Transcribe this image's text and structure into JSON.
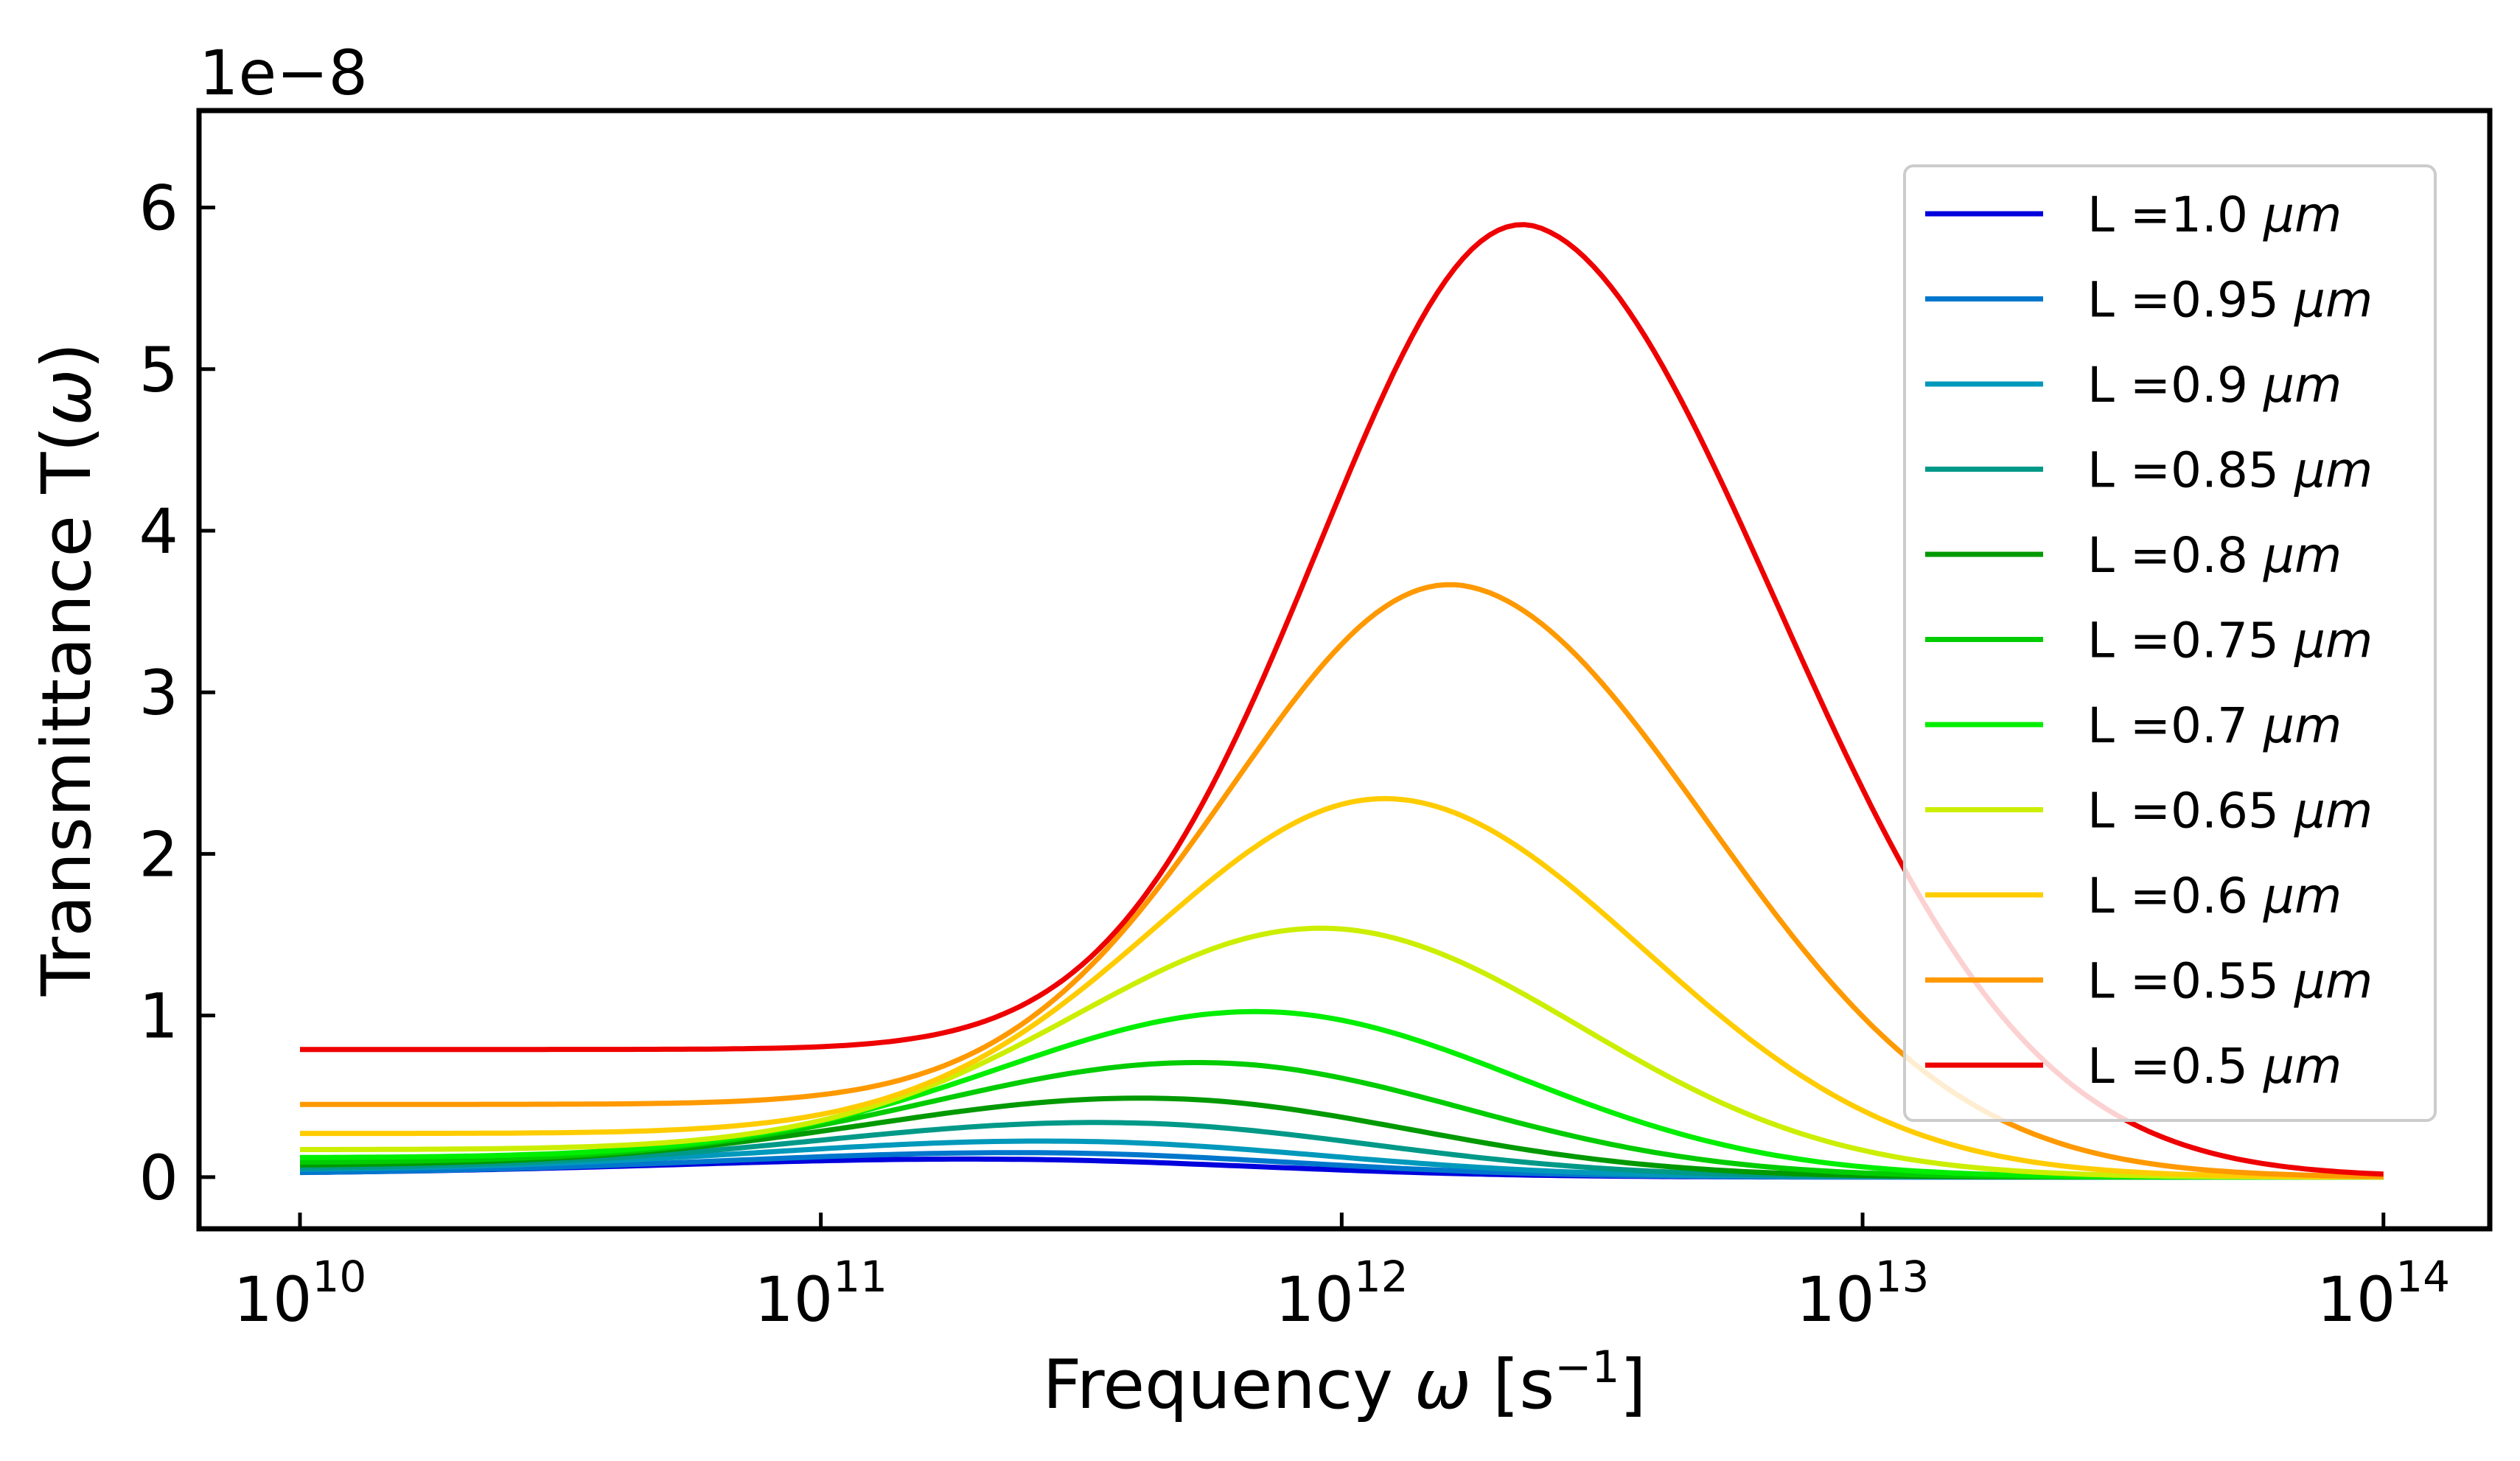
{
  "chart_data": {
    "type": "line",
    "title": "",
    "xlabel_pre": "Frequency ",
    "xlabel_sym": "ω",
    "xlabel_post1": " [s",
    "xlabel_sup": "−1",
    "xlabel_post2": "]",
    "ylabel_pre": "Transmittance T(",
    "ylabel_sym": "ω",
    "ylabel_post": ")",
    "y_offset_text": "1e−8",
    "x_scale": "log",
    "xlim": [
      6400000000.0,
      160000000000000.0
    ],
    "ylim": [
      -0.32,
      6.6
    ],
    "grid": false,
    "legend_position": "top-right",
    "x_ticks": [
      {
        "base": "10",
        "exp": "10",
        "value": 10000000000.0
      },
      {
        "base": "10",
        "exp": "11",
        "value": 100000000000.0
      },
      {
        "base": "10",
        "exp": "12",
        "value": 1000000000000.0
      },
      {
        "base": "10",
        "exp": "13",
        "value": 10000000000000.0
      },
      {
        "base": "10",
        "exp": "14",
        "value": 100000000000000.0
      }
    ],
    "y_ticks": [
      "0",
      "1",
      "2",
      "3",
      "4",
      "5",
      "6"
    ],
    "x_range": [
      10000000000.0,
      100000000000000.0
    ],
    "series": [
      {
        "name": "L =1.0 μm",
        "label_main": "L =1.0 ",
        "label_unit": "μm",
        "color": "#0000dd",
        "baseline": 0.02,
        "peak_x": 240000000000.0,
        "peak_y": 0.12
      },
      {
        "name": "L =0.95 μm",
        "label_main": "L =0.95 ",
        "label_unit": "μm",
        "color": "#0077cc",
        "baseline": 0.02,
        "peak_x": 280000000000.0,
        "peak_y": 0.16
      },
      {
        "name": "L =0.9 μm",
        "label_main": "L =0.9 ",
        "label_unit": "μm",
        "color": "#0099bb",
        "baseline": 0.04,
        "peak_x": 330000000000.0,
        "peak_y": 0.24
      },
      {
        "name": "L =0.85 μm",
        "label_main": "L =0.85 ",
        "label_unit": "μm",
        "color": "#009988",
        "baseline": 0.05,
        "peak_x": 400000000000.0,
        "peak_y": 0.36
      },
      {
        "name": "L =0.8 μm",
        "label_main": "L =0.8 ",
        "label_unit": "μm",
        "color": "#009900",
        "baseline": 0.07,
        "peak_x": 480000000000.0,
        "peak_y": 0.52
      },
      {
        "name": "L =0.75 μm",
        "label_main": "L =0.75 ",
        "label_unit": "μm",
        "color": "#00cc00",
        "baseline": 0.09,
        "peak_x": 600000000000.0,
        "peak_y": 0.75
      },
      {
        "name": "L =0.7 μm",
        "label_main": "L =0.7 ",
        "label_unit": "μm",
        "color": "#00ee00",
        "baseline": 0.12,
        "peak_x": 760000000000.0,
        "peak_y": 1.08
      },
      {
        "name": "L =0.65 μm",
        "label_main": "L =0.65 ",
        "label_unit": "μm",
        "color": "#ccee00",
        "baseline": 0.17,
        "peak_x": 1000000000000.0,
        "peak_y": 1.62
      },
      {
        "name": "L =0.6 μm",
        "label_main": "L =0.6 ",
        "label_unit": "μm",
        "color": "#ffcc00",
        "baseline": 0.27,
        "peak_x": 1320000000000.0,
        "peak_y": 2.47
      },
      {
        "name": "L =0.55 μm",
        "label_main": "L =0.55 ",
        "label_unit": "μm",
        "color": "#ff9900",
        "baseline": 0.45,
        "peak_x": 1750000000000.0,
        "peak_y": 3.88
      },
      {
        "name": "L =0.5 μm",
        "label_main": "L =0.5 ",
        "label_unit": "μm",
        "color": "#ee0000",
        "baseline": 0.79,
        "peak_x": 2400000000000.0,
        "peak_y": 6.27
      }
    ]
  }
}
